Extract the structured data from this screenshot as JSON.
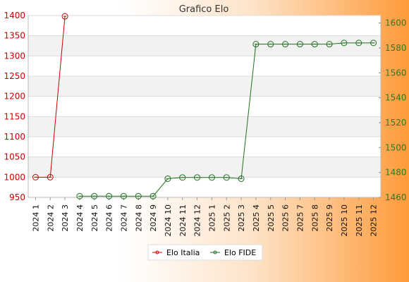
{
  "chart_data": {
    "type": "line",
    "title": "Grafico Elo",
    "categories": [
      "2024 1",
      "2024 2",
      "2024 3",
      "2024 4",
      "2024 5",
      "2024 6",
      "2024 7",
      "2024 8",
      "2024 9",
      "2024 10",
      "2024 11",
      "2024 12",
      "2025 1",
      "2025 2",
      "2025 3",
      "2025 4",
      "2025 5",
      "2025 6",
      "2025 7",
      "2025 8",
      "2025 9",
      "2025 10",
      "2025 11",
      "2025 12"
    ],
    "y_left": {
      "min": 950,
      "max": 1400,
      "ticks": [
        950,
        1000,
        1050,
        1100,
        1150,
        1200,
        1250,
        1300,
        1350,
        1400
      ],
      "color": "#cc0000"
    },
    "y_right": {
      "min": 1460,
      "max": 1606,
      "ticks": [
        1460,
        1480,
        1500,
        1520,
        1540,
        1560,
        1580,
        1600
      ],
      "color": "#2a7a2a"
    },
    "grid": true,
    "legend_position": "bottom-center",
    "series": [
      {
        "name": "Elo Italia",
        "axis": "left",
        "color": "#cc0000",
        "values": [
          1000,
          1000,
          1398,
          null,
          null,
          null,
          null,
          null,
          null,
          null,
          null,
          null,
          null,
          null,
          null,
          null,
          null,
          null,
          null,
          null,
          null,
          null,
          null,
          null
        ]
      },
      {
        "name": "Elo FIDE",
        "axis": "right",
        "color": "#1f6f1f",
        "values": [
          null,
          null,
          null,
          1461,
          1461,
          1461,
          1461,
          1461,
          1461,
          1475,
          1476,
          1476,
          1476,
          1476,
          1475,
          1583,
          1583,
          1583,
          1583,
          1583,
          1583,
          1584,
          1584,
          1584
        ]
      }
    ]
  }
}
